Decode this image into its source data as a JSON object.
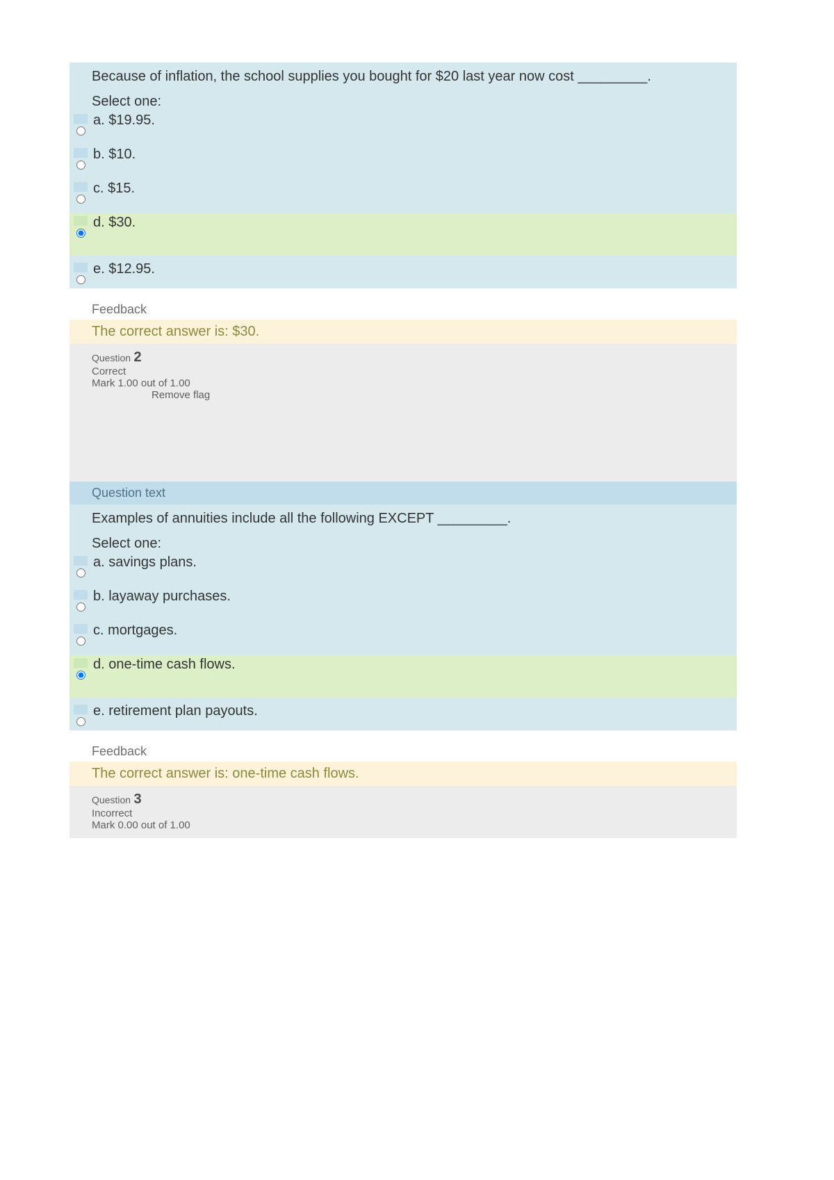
{
  "labels": {
    "select_one": "Select one:",
    "feedback_header": "Feedback",
    "question_text_label": "Question text",
    "question_word": "Question",
    "remove_flag": "Remove flag"
  },
  "q1": {
    "text": "Because of inflation, the school supplies you bought for $20 last year now cost _________.",
    "options": {
      "a": "a. $19.95.",
      "b": "b. $10.",
      "c": "c. $15.",
      "d": "d. $30.",
      "e": "e. $12.95."
    },
    "feedback": "The correct answer is: $30."
  },
  "q2": {
    "number": "2",
    "status": "Correct",
    "mark": "Mark 1.00 out of 1.00",
    "text": "Examples of annuities include all the following EXCEPT _________.",
    "options": {
      "a": "a. savings plans.",
      "b": "b. layaway purchases.",
      "c": "c. mortgages.",
      "d": "d. one-time cash flows.",
      "e": "e. retirement plan payouts."
    },
    "feedback": "The correct answer is: one-time cash flows."
  },
  "q3": {
    "number": "3",
    "status": "Incorrect",
    "mark": "Mark 0.00 out of 1.00"
  },
  "colors": {
    "option_bg": "#d4e8ee",
    "correct_bg": "#dcefc6",
    "feedback_bg": "#fdf3da",
    "meta_bg": "#ececec",
    "qtext_label_bg": "#c1dceb",
    "text_color": "#333333",
    "feedback_text": "#8d893e"
  }
}
